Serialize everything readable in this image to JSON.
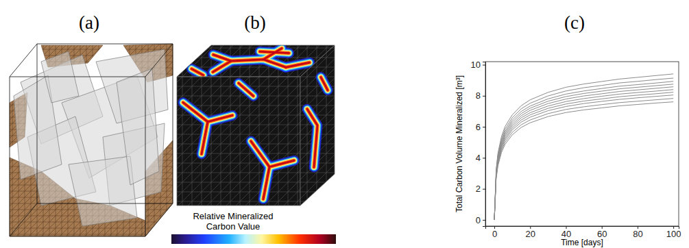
{
  "panels": [
    "(a)",
    "(b)",
    "(c)"
  ],
  "colorbar": {
    "label": [
      "Relative Mineralized",
      "Carbon Value"
    ]
  },
  "chart_data": {
    "type": "line",
    "x_label": "Time [days]",
    "y_label": "Total Carbon Volume Mineralized [m³]",
    "xlim": [
      -5,
      103
    ],
    "ylim": [
      -0.4,
      10.2
    ],
    "xticks": [
      0,
      20,
      40,
      60,
      80,
      100
    ],
    "yticks": [
      0,
      2,
      4,
      6,
      8,
      10
    ],
    "grid": false,
    "x": [
      0,
      1,
      2,
      4,
      6,
      10,
      15,
      20,
      30,
      40,
      50,
      60,
      70,
      80,
      90,
      100
    ],
    "series": [
      {
        "color": "#8c8c8c",
        "values": [
          0,
          2.61,
          3.48,
          4.35,
          4.87,
          5.48,
          5.96,
          6.26,
          6.66,
          6.92,
          7.09,
          7.22,
          7.35,
          7.44,
          7.53,
          7.61
        ]
      },
      {
        "color": "#8c8c8c",
        "values": [
          0,
          2.69,
          3.58,
          4.48,
          5.01,
          5.64,
          6.13,
          6.44,
          6.85,
          7.12,
          7.29,
          7.43,
          7.56,
          7.65,
          7.74,
          7.83
        ]
      },
      {
        "color": "#8c8c8c",
        "values": [
          0,
          2.76,
          3.68,
          4.6,
          5.15,
          5.8,
          6.3,
          6.62,
          7.04,
          7.31,
          7.5,
          7.64,
          7.77,
          7.87,
          7.96,
          8.05
        ]
      },
      {
        "color": "#8c8c8c",
        "values": [
          0,
          2.82,
          3.76,
          4.7,
          5.26,
          5.92,
          6.44,
          6.77,
          7.19,
          7.47,
          7.66,
          7.8,
          7.94,
          8.04,
          8.13,
          8.23
        ]
      },
      {
        "color": "#8c8c8c",
        "values": [
          0,
          2.88,
          3.84,
          4.8,
          5.38,
          6.05,
          6.58,
          6.91,
          7.34,
          7.63,
          7.82,
          7.97,
          8.11,
          8.21,
          8.3,
          8.4
        ]
      },
      {
        "color": "#8c8c8c",
        "values": [
          0,
          2.94,
          3.92,
          4.9,
          5.49,
          6.17,
          6.71,
          7.06,
          7.5,
          7.79,
          7.99,
          8.13,
          8.28,
          8.38,
          8.48,
          8.58
        ]
      },
      {
        "color": "#8c8c8c",
        "values": [
          0,
          3.0,
          4.0,
          5.0,
          5.6,
          6.3,
          6.85,
          7.2,
          7.65,
          7.95,
          8.15,
          8.3,
          8.45,
          8.55,
          8.65,
          8.75
        ]
      },
      {
        "color": "#8c8c8c",
        "values": [
          0,
          3.06,
          4.08,
          5.1,
          5.71,
          6.43,
          6.99,
          7.34,
          7.8,
          8.11,
          8.31,
          8.47,
          8.62,
          8.72,
          8.82,
          8.93
        ]
      },
      {
        "color": "#8c8c8c",
        "values": [
          0,
          3.14,
          4.18,
          5.23,
          5.85,
          6.58,
          7.16,
          7.52,
          7.99,
          8.31,
          8.52,
          8.67,
          8.83,
          8.93,
          9.04,
          9.14
        ]
      },
      {
        "color": "#8c8c8c",
        "values": [
          0,
          3.23,
          4.3,
          5.38,
          6.02,
          6.77,
          7.36,
          7.74,
          8.22,
          8.55,
          8.76,
          8.92,
          9.08,
          9.19,
          9.3,
          9.41
        ]
      }
    ]
  }
}
